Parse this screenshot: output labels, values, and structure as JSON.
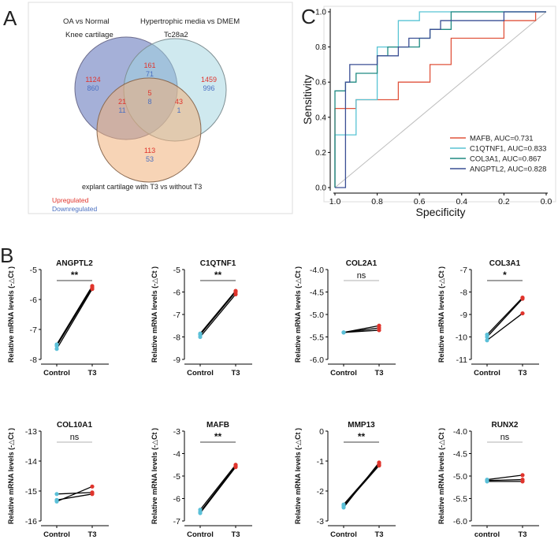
{
  "panels": {
    "A": {
      "letter": "A"
    },
    "B": {
      "letter": "B"
    },
    "C": {
      "letter": "C"
    }
  },
  "venn": {
    "label_oa": "OA vs Normal",
    "label_knee": "Knee cartilage",
    "label_hyp": "Hypertrophic media vs DMEM",
    "label_tc": "Tc28a2",
    "label_explant": "explant cartilage with T3 vs without T3",
    "legend_up": "Upregulated",
    "legend_down": "Downregulated",
    "colors": {
      "blue_circle": "#5b6fb8",
      "teal_circle": "#9fd3df",
      "orange_circle": "#f0b07a",
      "up": "#e0342c",
      "down": "#4a6fc0"
    },
    "regions": [
      {
        "key": "A_only",
        "up": "1124",
        "down": "860"
      },
      {
        "key": "AB",
        "up": "161",
        "down": "71"
      },
      {
        "key": "B_only",
        "up": "1459",
        "down": "996"
      },
      {
        "key": "ABC",
        "up": "5",
        "down": "8"
      },
      {
        "key": "AC",
        "up": "21",
        "down": "11"
      },
      {
        "key": "BC",
        "up": "43",
        "down": "1"
      },
      {
        "key": "C_only",
        "up": "113",
        "down": "53"
      }
    ]
  },
  "chart_data": [
    {
      "type": "line",
      "id": "roc",
      "title": "",
      "xlabel": "Specificity",
      "ylabel": "Sensitivity",
      "xlim": [
        1.0,
        0.0
      ],
      "ylim": [
        0.0,
        1.0
      ],
      "xticks": [
        "1.0",
        "0.8",
        "0.6",
        "0.4",
        "0.2",
        "0.0"
      ],
      "yticks": [
        "0.0",
        "0.2",
        "0.4",
        "0.6",
        "0.8",
        "1.0"
      ],
      "legend_position": "bottom-right",
      "series": [
        {
          "name": "MAFB",
          "legend": "MAFB, AUC=0.731",
          "color": "#e0533c",
          "points": [
            [
              1.0,
              0.0
            ],
            [
              1.0,
              0.45
            ],
            [
              0.9,
              0.45
            ],
            [
              0.9,
              0.5
            ],
            [
              0.7,
              0.5
            ],
            [
              0.7,
              0.6
            ],
            [
              0.55,
              0.6
            ],
            [
              0.55,
              0.7
            ],
            [
              0.45,
              0.7
            ],
            [
              0.45,
              0.85
            ],
            [
              0.2,
              0.85
            ],
            [
              0.2,
              0.9
            ],
            [
              0.2,
              0.95
            ],
            [
              0.05,
              0.95
            ],
            [
              0.05,
              1.0
            ],
            [
              0.0,
              1.0
            ]
          ]
        },
        {
          "name": "C1QTNF1",
          "legend": "C1QTNF1, AUC=0.833",
          "color": "#58c4d4",
          "points": [
            [
              1.0,
              0.0
            ],
            [
              1.0,
              0.3
            ],
            [
              0.9,
              0.3
            ],
            [
              0.9,
              0.5
            ],
            [
              0.8,
              0.5
            ],
            [
              0.8,
              0.8
            ],
            [
              0.7,
              0.8
            ],
            [
              0.7,
              0.95
            ],
            [
              0.6,
              0.95
            ],
            [
              0.6,
              1.0
            ],
            [
              0.0,
              1.0
            ]
          ]
        },
        {
          "name": "COL3A1",
          "legend": "COL3A1, AUC=0.867",
          "color": "#1f8a82",
          "points": [
            [
              1.0,
              0.0
            ],
            [
              1.0,
              0.55
            ],
            [
              0.95,
              0.55
            ],
            [
              0.95,
              0.6
            ],
            [
              0.9,
              0.6
            ],
            [
              0.9,
              0.65
            ],
            [
              0.8,
              0.65
            ],
            [
              0.8,
              0.75
            ],
            [
              0.75,
              0.75
            ],
            [
              0.75,
              0.8
            ],
            [
              0.6,
              0.8
            ],
            [
              0.6,
              0.85
            ],
            [
              0.55,
              0.85
            ],
            [
              0.55,
              0.9
            ],
            [
              0.45,
              0.9
            ],
            [
              0.45,
              1.0
            ],
            [
              0.0,
              1.0
            ]
          ]
        },
        {
          "name": "ANGPTL2",
          "legend": "ANGPTL2, AUC=0.828",
          "color": "#3a4f94",
          "points": [
            [
              1.0,
              0.0
            ],
            [
              0.95,
              0.0
            ],
            [
              0.95,
              0.6
            ],
            [
              0.93,
              0.6
            ],
            [
              0.93,
              0.7
            ],
            [
              0.8,
              0.7
            ],
            [
              0.8,
              0.75
            ],
            [
              0.7,
              0.75
            ],
            [
              0.7,
              0.8
            ],
            [
              0.65,
              0.8
            ],
            [
              0.65,
              0.85
            ],
            [
              0.55,
              0.85
            ],
            [
              0.55,
              0.9
            ],
            [
              0.5,
              0.9
            ],
            [
              0.5,
              0.95
            ],
            [
              0.2,
              0.95
            ],
            [
              0.2,
              1.0
            ],
            [
              0.0,
              1.0
            ]
          ]
        }
      ]
    },
    {
      "type": "scatter",
      "id": "angptl2",
      "title": "ANGPTL2",
      "ylabel": "Relative mRNA levels  (-△Ct )",
      "categories": [
        "Control",
        "T3"
      ],
      "ylim": [
        -8,
        -5
      ],
      "yticks": [
        "-8",
        "-7",
        "-6",
        "-5"
      ],
      "signif": "**",
      "pairs": [
        [
          -7.5,
          -5.55
        ],
        [
          -7.55,
          -5.6
        ],
        [
          -7.65,
          -5.65
        ]
      ]
    },
    {
      "type": "scatter",
      "id": "c1qtnf1",
      "title": "C1QTNF1",
      "ylabel": "Relative mRNA levels  (-△Ct )",
      "categories": [
        "Control",
        "T3"
      ],
      "ylim": [
        -9,
        -5
      ],
      "yticks": [
        "-9",
        "-8",
        "-7",
        "-6",
        "-5"
      ],
      "signif": "**",
      "pairs": [
        [
          -7.85,
          -5.95
        ],
        [
          -7.9,
          -6.0
        ],
        [
          -8.0,
          -6.1
        ]
      ]
    },
    {
      "type": "scatter",
      "id": "col2a1",
      "title": "COL2A1",
      "ylabel": "Relative mRNA levels  (-△Ct )",
      "categories": [
        "Control",
        "T3"
      ],
      "ylim": [
        -6.0,
        -4.0
      ],
      "yticks": [
        "-6.0",
        "-5.5",
        "-5.0",
        "-4.5",
        "-4.0"
      ],
      "signif": "ns",
      "pairs": [
        [
          -5.4,
          -5.25
        ],
        [
          -5.4,
          -5.3
        ],
        [
          -5.4,
          -5.35
        ]
      ]
    },
    {
      "type": "scatter",
      "id": "col3a1",
      "title": "COL3A1",
      "ylabel": "Relative mRNA levels  (-△Ct )",
      "categories": [
        "Control",
        "T3"
      ],
      "ylim": [
        -11,
        -7
      ],
      "yticks": [
        "-11",
        "-10",
        "-9",
        "-8",
        "-7"
      ],
      "signif": "*",
      "pairs": [
        [
          -9.9,
          -8.25
        ],
        [
          -10.0,
          -8.3
        ],
        [
          -10.15,
          -8.95
        ]
      ]
    },
    {
      "type": "scatter",
      "id": "col10a1",
      "title": "COL10A1",
      "ylabel": "Relative mRNA levels  (-△Ct )",
      "categories": [
        "Control",
        "T3"
      ],
      "ylim": [
        -16,
        -13
      ],
      "yticks": [
        "-16",
        "-15",
        "-14",
        "-13"
      ],
      "signif": "ns",
      "pairs": [
        [
          -15.1,
          -15.05
        ],
        [
          -15.3,
          -15.1
        ],
        [
          -15.35,
          -14.85
        ]
      ]
    },
    {
      "type": "scatter",
      "id": "mafb",
      "title": "MAFB",
      "ylabel": "Relative mRNA levels  (-△Ct )",
      "categories": [
        "Control",
        "T3"
      ],
      "ylim": [
        -7,
        -3
      ],
      "yticks": [
        "-7",
        "-6",
        "-5",
        "-4",
        "-3"
      ],
      "signif": "**",
      "pairs": [
        [
          -6.5,
          -4.5
        ],
        [
          -6.6,
          -4.55
        ],
        [
          -6.65,
          -4.6
        ]
      ]
    },
    {
      "type": "scatter",
      "id": "mmp13",
      "title": "MMP13",
      "ylabel": "Relative mRNA levels  (-△Ct )",
      "categories": [
        "Control",
        "T3"
      ],
      "ylim": [
        -3,
        0
      ],
      "yticks": [
        "-3",
        "-2",
        "-1",
        "0"
      ],
      "signif": "**",
      "pairs": [
        [
          -2.45,
          -1.1
        ],
        [
          -2.5,
          -1.15
        ],
        [
          -2.55,
          -1.05
        ]
      ]
    },
    {
      "type": "scatter",
      "id": "runx2",
      "title": "RUNX2",
      "ylabel": "Relative mRNA levels  (-△Ct )",
      "categories": [
        "control",
        "T3"
      ],
      "ylim": [
        -6.0,
        -4.0
      ],
      "yticks": [
        "-6.0",
        "-5.5",
        "-5.0",
        "-4.5",
        "-4.0"
      ],
      "signif": "ns",
      "pairs": [
        [
          -5.08,
          -4.98
        ],
        [
          -5.1,
          -5.08
        ],
        [
          -5.12,
          -5.12
        ]
      ]
    }
  ],
  "colors": {
    "control_dot": "#5bc0d8",
    "t3_dot": "#e0342c",
    "line": "#000000",
    "axis": "#000000"
  }
}
